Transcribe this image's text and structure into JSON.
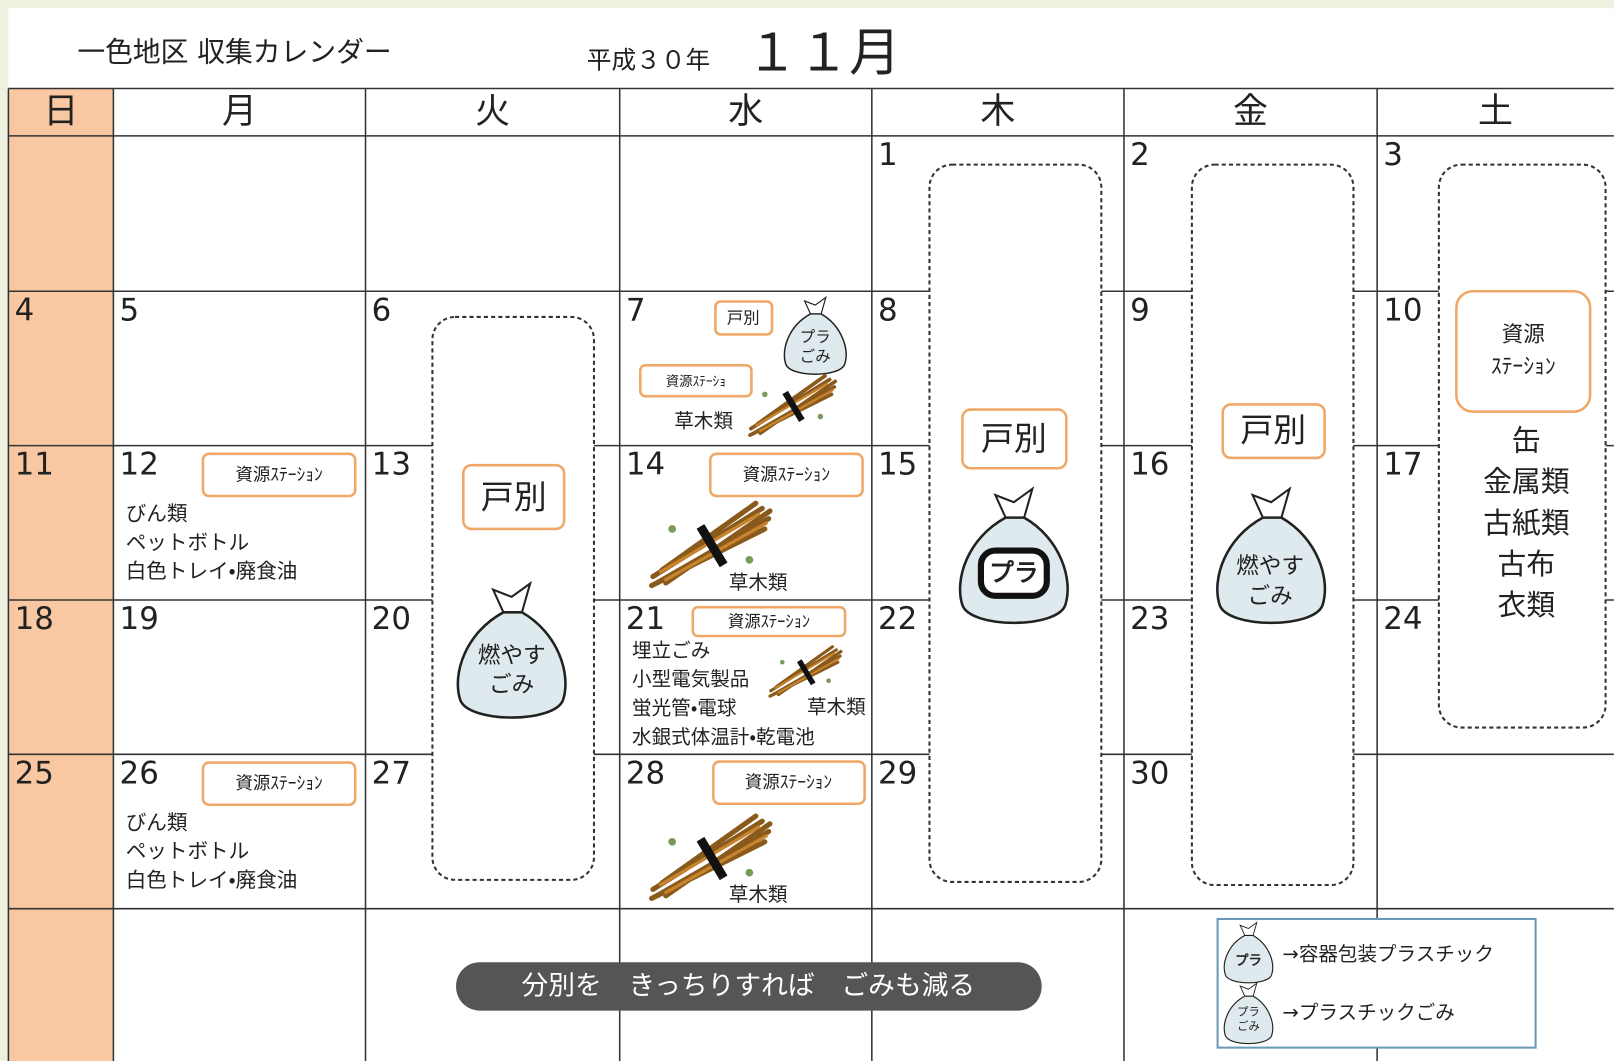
{
  "header": {
    "title": "一色地区 収集カレンダー",
    "year": "平成３０年",
    "month": "１１月"
  },
  "weekdays": [
    "日",
    "月",
    "火",
    "水",
    "木",
    "金",
    "土"
  ],
  "weeks": [
    [
      null,
      null,
      null,
      null,
      1,
      2,
      3
    ],
    [
      4,
      5,
      6,
      7,
      8,
      9,
      10
    ],
    [
      11,
      12,
      13,
      14,
      15,
      16,
      17
    ],
    [
      18,
      19,
      20,
      21,
      22,
      23,
      24
    ],
    [
      25,
      26,
      27,
      28,
      29,
      30,
      null
    ]
  ],
  "bands": [
    {
      "tag": "戸別",
      "bag": [
        "燃やす",
        "ごみ"
      ]
    },
    {
      "tag": "戸別",
      "bag": [
        "プラ"
      ]
    },
    {
      "tag": "戸別",
      "bag": [
        "燃やす",
        "ごみ"
      ]
    },
    {
      "tag": [
        "資源",
        "ｽﾃｰｼｮﾝ"
      ],
      "items": [
        "缶",
        "金属類",
        "古紙類",
        "古布",
        "衣類"
      ]
    }
  ],
  "notes": [
    {
      "tag": "戸別",
      "bag": [
        "プラ",
        "ごみ"
      ],
      "tag2": "資源ｽﾃｰｼｮ",
      "label": "草木類"
    },
    {
      "tag": "資源ｽﾃｰｼｮﾝ",
      "items": [
        "びん類",
        "ペットボトル",
        "白色トレイ・廃食油"
      ]
    },
    {
      "tag": "資源ｽﾃｰｼｮﾝ",
      "label": "草木類"
    },
    {
      "tag": "資源ｽﾃｰｼｮﾝ",
      "items": [
        "埋立ごみ",
        "小型電気製品",
        "蛍光管・電球",
        "水銀式体温計・乾電池"
      ],
      "label": "草木類"
    },
    {
      "tag": "資源ｽﾃｰｼｮﾝ",
      "items": [
        "びん類",
        "ペットボトル",
        "白色トレイ・廃食油"
      ]
    },
    {
      "tag": "資源ｽﾃｰｼｮﾝ",
      "label": "草木類"
    }
  ],
  "slogan": "分別を　きっちりすれば　ごみも減る",
  "legend": [
    {
      "icon": "プラ",
      "text": "→容器包装プラスチック"
    },
    {
      "icon": [
        "プラ",
        "ごみ"
      ],
      "text": "→プラスチックごみ"
    }
  ]
}
